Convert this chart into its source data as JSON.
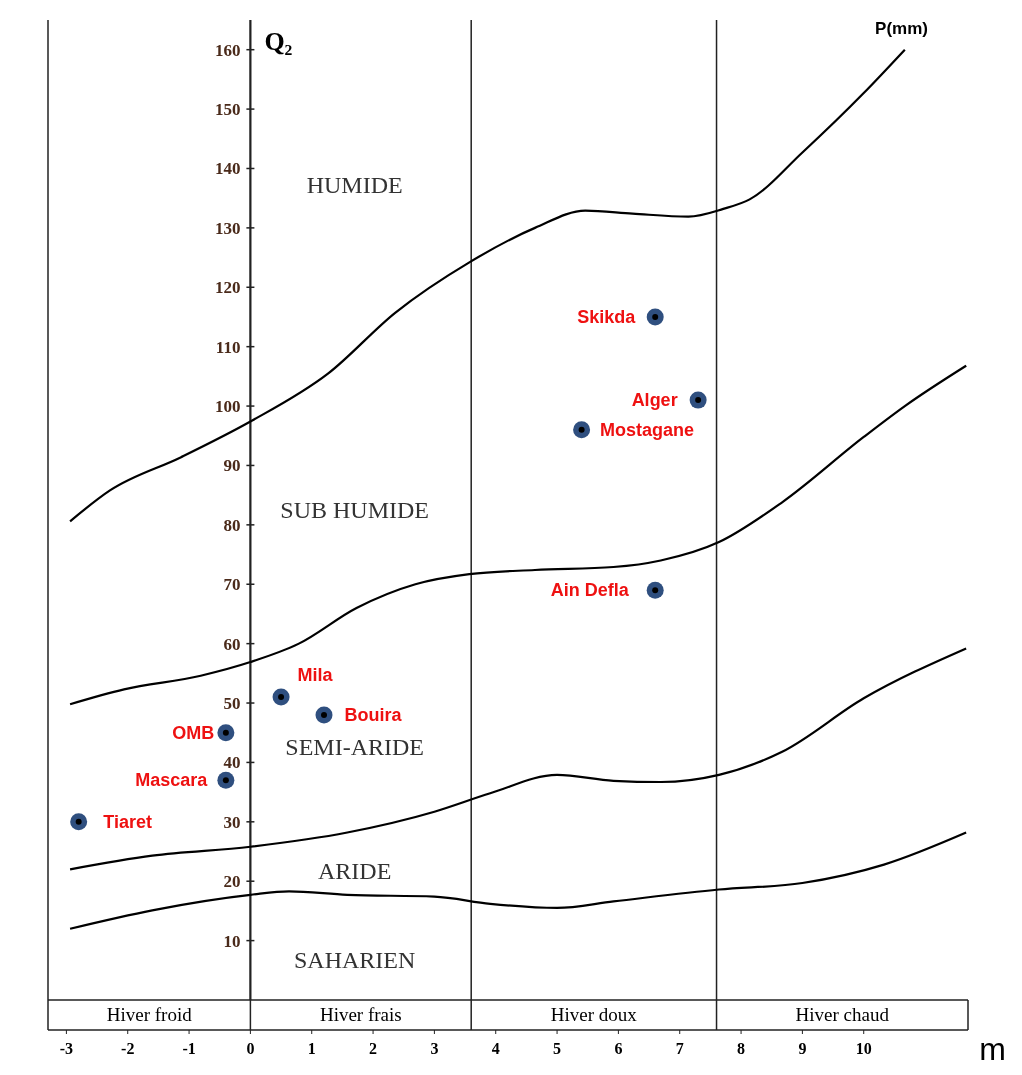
{
  "chart_data": {
    "type": "line",
    "xlabel": "m",
    "ylabel": "Q₂",
    "xlim": [
      -3.3,
      11.7
    ],
    "ylim": [
      0,
      165
    ],
    "xticks": [
      -3,
      -2,
      -1,
      0,
      1,
      2,
      3,
      4,
      5,
      6,
      7,
      8,
      9,
      10
    ],
    "yticks": [
      10,
      20,
      30,
      40,
      50,
      60,
      70,
      80,
      90,
      100,
      110,
      120,
      130,
      140,
      150,
      160
    ],
    "ref_lines": [
      {
        "axis": "x",
        "value": 0
      },
      {
        "axis": "x",
        "value": 3.6
      },
      {
        "axis": "x",
        "value": 7.6
      }
    ],
    "annotations": [
      "P(mm)",
      "HUMIDE",
      "SUB HUMIDE",
      "SEMI-ARIDE",
      "ARIDE",
      "SAHARIEN",
      "Hiver froid",
      "Hiver frais",
      "Hiver doux",
      "Hiver chaud"
    ],
    "series": [
      {
        "color": "#000000",
        "x": [
          -2.94,
          -2.29,
          -1.13,
          0,
          1.27,
          2.36,
          3.57,
          4.64,
          5.46,
          6.23,
          7.14,
          7.71,
          8.14,
          9,
          10,
          10.67
        ],
        "values": [
          80.6,
          85.8,
          91.4,
          97.4,
          105.5,
          115.7,
          124.2,
          130,
          132.9,
          132.4,
          131.9,
          133.2,
          134.8,
          142.7,
          152.7,
          160
        ]
      },
      {
        "color": "#000000",
        "x": [
          -2.94,
          -2.06,
          -0.81,
          0,
          0.79,
          1.73,
          2.69,
          3.57,
          4.64,
          5.92,
          6.69,
          7.64,
          8.67,
          10,
          10.67,
          11.67
        ],
        "values": [
          49.8,
          52.3,
          54.6,
          56.9,
          60,
          66,
          70,
          71.7,
          72.4,
          72.9,
          74,
          77.1,
          83.8,
          94.8,
          100,
          106.8
        ]
      },
      {
        "color": "#000000",
        "x": [
          -2.94,
          -1.6,
          0,
          1.58,
          3,
          3.91,
          5,
          5.92,
          6.69,
          7.64,
          8.67,
          10,
          11.67
        ],
        "values": [
          22,
          24.3,
          25.8,
          28.2,
          31.7,
          34.8,
          37.9,
          36.9,
          36.7,
          37.9,
          41.8,
          50.8,
          59.2
        ]
      },
      {
        "color": "#000000",
        "x": [
          -2.94,
          -1.6,
          0,
          0.63,
          1.58,
          3,
          3.91,
          5,
          5.92,
          7.64,
          9,
          10.33,
          11.67
        ],
        "values": [
          12,
          15.1,
          17.7,
          18.3,
          17.7,
          17.4,
          16.2,
          15.5,
          16.6,
          18.6,
          19.7,
          22.8,
          28.2
        ]
      },
      {
        "type": "scatter",
        "marker": "circle",
        "name": "Tiaret",
        "color": "#2f4f7f",
        "x": [
          -2.8
        ],
        "values": [
          30
        ]
      },
      {
        "type": "scatter",
        "marker": "circle",
        "name": "OMB",
        "color": "#2f4f7f",
        "x": [
          -0.4
        ],
        "values": [
          45
        ]
      },
      {
        "type": "scatter",
        "marker": "circle",
        "name": "Mascara",
        "color": "#2f4f7f",
        "x": [
          -0.4
        ],
        "values": [
          37
        ]
      },
      {
        "type": "scatter",
        "marker": "circle",
        "name": "Mila",
        "color": "#2f4f7f",
        "x": [
          0.5
        ],
        "values": [
          51
        ]
      },
      {
        "type": "scatter",
        "marker": "circle",
        "name": "Bouira",
        "color": "#2f4f7f",
        "x": [
          1.2
        ],
        "values": [
          48
        ]
      },
      {
        "type": "scatter",
        "marker": "circle",
        "name": "Mostagane",
        "color": "#2f4f7f",
        "x": [
          5.4
        ],
        "values": [
          96
        ]
      },
      {
        "type": "scatter",
        "marker": "circle",
        "name": "Skikda",
        "color": "#2f4f7f",
        "x": [
          6.6
        ],
        "values": [
          115
        ]
      },
      {
        "type": "scatter",
        "marker": "circle",
        "name": "Alger",
        "color": "#2f4f7f",
        "x": [
          7.3
        ],
        "values": [
          101
        ]
      },
      {
        "type": "scatter",
        "marker": "circle",
        "name": "Ain Defla",
        "color": "#2f4f7f",
        "x": [
          6.6
        ],
        "values": [
          69
        ]
      }
    ]
  }
}
